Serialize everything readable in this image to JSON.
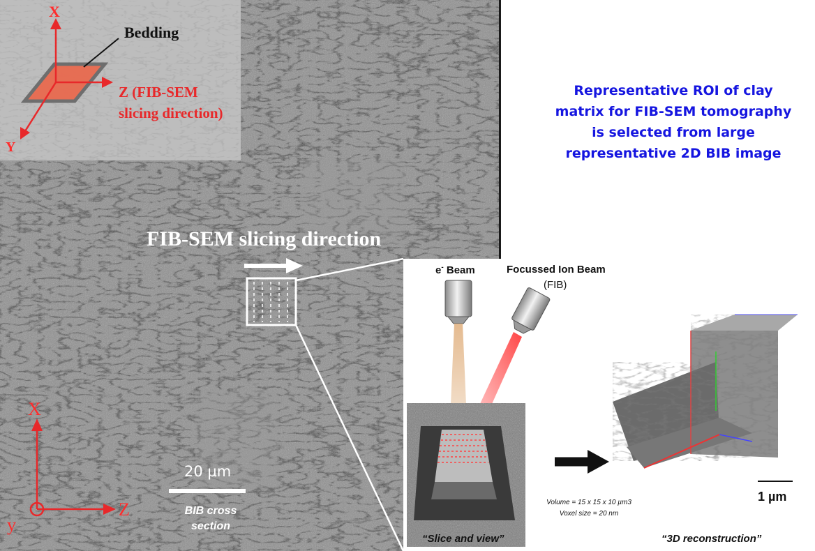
{
  "inset": {
    "axis_x": "X",
    "axis_y": "Y",
    "bedding_label": "Bedding",
    "z_label_line1": "Z (FIB-SEM",
    "z_label_line2": "slicing direction)"
  },
  "sem": {
    "slicing_title": "FIB-SEM slicing direction",
    "scale_bar_label": "20 µm",
    "bib_label_line1": "BIB cross",
    "bib_label_line2": "section",
    "axis_x": "X",
    "axis_y": "y",
    "axis_z": "Z"
  },
  "roi_text": "Representative ROI of clay matrix for FIB-SEM tomography is selected from large representative 2D BIB image",
  "panel": {
    "ebeam_label": "e",
    "ebeam_sup": "-",
    "ebeam_suffix": " Beam",
    "fib_label_line1": "Focussed Ion Beam",
    "fib_label_line2": "(FIB)",
    "volume_line1": "Volume  = 15 x 15 x 10 µm3",
    "volume_line2": "Voxel size = 20 nm",
    "caption_left": "“Slice and view”",
    "caption_right": "“3D reconstruction”",
    "scale_label": "1 µm"
  },
  "colors": {
    "red_axes": "#e8282a",
    "roi_text": "#1515e0",
    "ion_beam": "#ff5555",
    "electron_beam": "#e3b78a"
  }
}
